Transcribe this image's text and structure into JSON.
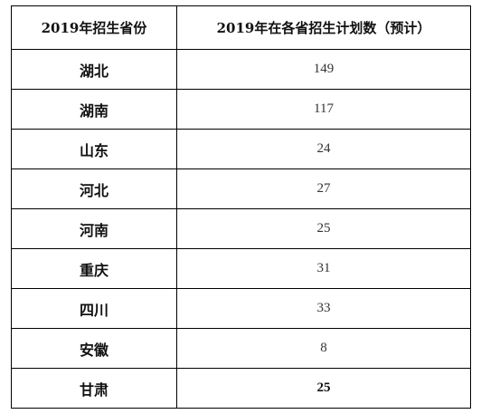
{
  "table": {
    "headers": [
      "2019年招生省份",
      "2019年在各省招生计划数（预计）"
    ],
    "rows": [
      {
        "province": "湖北",
        "count": "149"
      },
      {
        "province": "湖南",
        "count": "117"
      },
      {
        "province": "山东",
        "count": "24"
      },
      {
        "province": "河北",
        "count": "27"
      },
      {
        "province": "河南",
        "count": "25"
      },
      {
        "province": "重庆",
        "count": "31"
      },
      {
        "province": "四川",
        "count": "33"
      },
      {
        "province": "安徽",
        "count": "8"
      },
      {
        "province": "甘肃",
        "count": "25"
      }
    ]
  }
}
